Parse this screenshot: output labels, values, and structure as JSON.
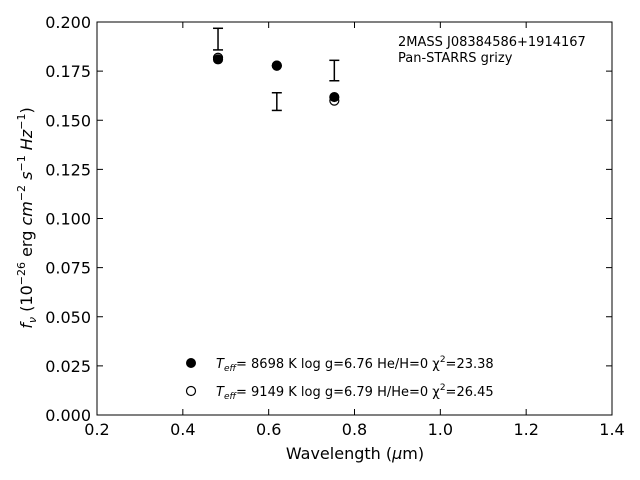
{
  "chart_data": {
    "type": "scatter",
    "xlabel": "Wavelength (μm)",
    "ylabel": "f_ν (10^-26 erg cm^-2 s^-1 Hz^-1)",
    "xlim": [
      0.2,
      1.4
    ],
    "ylim": [
      0.0,
      0.2
    ],
    "xticks": [
      "0.2",
      "0.4",
      "0.6",
      "0.8",
      "1.0",
      "1.2",
      "1.4"
    ],
    "yticks": [
      "0.000",
      "0.025",
      "0.050",
      "0.075",
      "0.100",
      "0.125",
      "0.150",
      "0.175",
      "0.200"
    ],
    "annotation": [
      "2MASS J08384586+1914167",
      "Pan-STARRS grizy"
    ],
    "observed": [
      {
        "x": 0.482,
        "y": 0.1913,
        "err": 0.0055
      },
      {
        "x": 0.619,
        "y": 0.1595,
        "err": 0.0045
      },
      {
        "x": 0.753,
        "y": 0.1753,
        "err": 0.0052
      }
    ],
    "series": [
      {
        "marker": "filled",
        "legend_parts": [
          "T",
          "eff",
          "=  8698 K  log g=6.76  He/H=0  χ",
          "2",
          "=23.38"
        ],
        "x": [
          0.482,
          0.619,
          0.753
        ],
        "y": [
          0.181,
          0.1778,
          0.1618
        ]
      },
      {
        "marker": "open",
        "legend_parts": [
          "T",
          "eff",
          "=  9149 K  log g=6.79  H/He=0  χ",
          "2",
          "=26.45"
        ],
        "x": [
          0.482,
          0.619,
          0.753
        ],
        "y": [
          0.1818,
          0.1778,
          0.16
        ]
      }
    ]
  }
}
